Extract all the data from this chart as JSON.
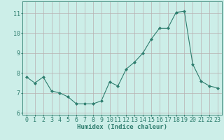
{
  "x": [
    0,
    1,
    2,
    3,
    4,
    5,
    6,
    7,
    8,
    9,
    10,
    11,
    12,
    13,
    14,
    15,
    16,
    17,
    18,
    19,
    20,
    21,
    22,
    23
  ],
  "y": [
    7.8,
    7.5,
    7.8,
    7.1,
    7.0,
    6.8,
    6.45,
    6.45,
    6.45,
    6.6,
    7.55,
    7.35,
    8.2,
    8.55,
    9.0,
    9.7,
    10.25,
    10.25,
    11.05,
    11.1,
    8.45,
    7.6,
    7.35,
    7.25
  ],
  "line_color": "#2e7d6e",
  "marker": "D",
  "marker_size": 2.0,
  "bg_color": "#cceee8",
  "grid_color_major": "#b8b0b0",
  "grid_color_minor": "#d4cccc",
  "xlabel": "Humidex (Indice chaleur)",
  "ylim": [
    5.9,
    11.6
  ],
  "xlim": [
    -0.5,
    23.5
  ],
  "yticks": [
    6,
    7,
    8,
    9,
    10,
    11
  ],
  "xtick_labels": [
    "0",
    "1",
    "2",
    "3",
    "4",
    "5",
    "6",
    "7",
    "8",
    "9",
    "10",
    "11",
    "12",
    "13",
    "14",
    "15",
    "16",
    "17",
    "18",
    "19",
    "20",
    "21",
    "22",
    "23"
  ],
  "font_color": "#2e7d6e",
  "label_fontsize": 6.5,
  "tick_fontsize": 6.0
}
